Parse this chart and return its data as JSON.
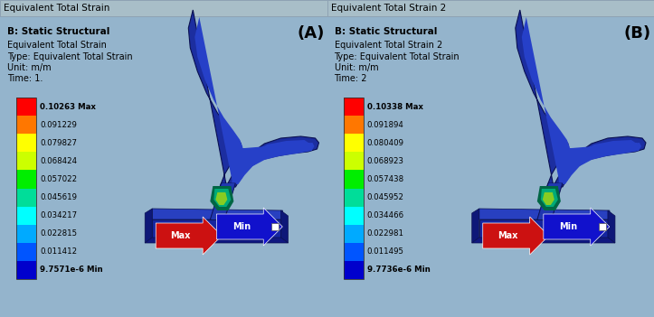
{
  "panel_A": {
    "tab_title": "Equivalent Total Strain",
    "label": "(A)",
    "bold_line1": "B: Static Structural",
    "line2": "Equivalent Total Strain",
    "line3": "Type: Equivalent Total Strain",
    "line4": "Unit: m/m",
    "line5": "Time: 1.",
    "colorbar_values": [
      "0.10263 Max",
      "0.091229",
      "0.079827",
      "0.068424",
      "0.057022",
      "0.045619",
      "0.034217",
      "0.022815",
      "0.011412",
      "9.7571e-6 Min"
    ]
  },
  "panel_B": {
    "tab_title": "Equivalent Total Strain 2",
    "label": "(B)",
    "bold_line1": "B: Static Structural",
    "line2": "Equivalent Total Strain 2",
    "line3": "Type: Equivalent Total Strain",
    "line4": "Unit: m/m",
    "line5": "Time: 2",
    "colorbar_values": [
      "0.10338 Max",
      "0.091894",
      "0.080409",
      "0.068923",
      "0.057438",
      "0.045952",
      "0.034466",
      "0.022981",
      "0.011495",
      "9.7736e-6 Min"
    ]
  },
  "colorbar_colors": [
    "#FF0000",
    "#FF7700",
    "#FFFF00",
    "#CCFF00",
    "#00EE00",
    "#00DD99",
    "#00FFFF",
    "#00AAFF",
    "#0055FF",
    "#0000CC"
  ],
  "background_color": "#94B4CC",
  "tab_bg_color": "#A0BCCC",
  "figsize": [
    7.23,
    3.51
  ],
  "dpi": 100
}
